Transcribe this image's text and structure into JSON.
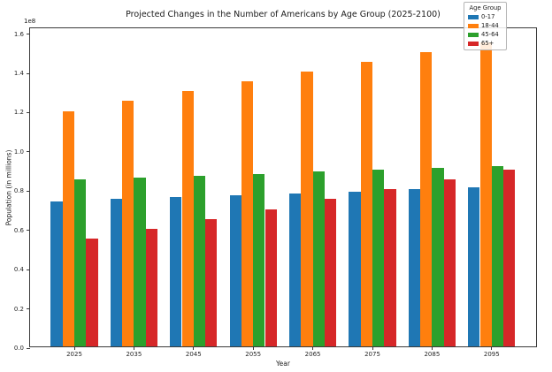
{
  "chart_data": {
    "type": "bar",
    "title": "Projected Changes in the Number of Americans by Age Group (2025-2100)",
    "xlabel": "Year",
    "ylabel": "Population (in millions)",
    "y_offset_label": "1e8",
    "categories": [
      "2025",
      "2035",
      "2045",
      "2055",
      "2065",
      "2075",
      "2085",
      "2095"
    ],
    "series": [
      {
        "name": "0-17",
        "color": "#1f77b4",
        "values": [
          0.74,
          0.75,
          0.76,
          0.77,
          0.78,
          0.79,
          0.8,
          0.81
        ]
      },
      {
        "name": "18-44",
        "color": "#ff7f0e",
        "values": [
          1.2,
          1.25,
          1.3,
          1.35,
          1.4,
          1.45,
          1.5,
          1.55
        ]
      },
      {
        "name": "45-64",
        "color": "#2ca02c",
        "values": [
          0.85,
          0.86,
          0.87,
          0.88,
          0.89,
          0.9,
          0.91,
          0.92
        ]
      },
      {
        "name": "65+",
        "color": "#d62728",
        "values": [
          0.55,
          0.6,
          0.65,
          0.7,
          0.75,
          0.8,
          0.85,
          0.9
        ]
      }
    ],
    "yticks": [
      0.0,
      0.2,
      0.4,
      0.6,
      0.8,
      1.0,
      1.2,
      1.4,
      1.6
    ],
    "ylim": [
      0,
      1.63
    ],
    "grid": false,
    "legend": {
      "title": "Age Group",
      "position": "upper right",
      "entries": [
        "0-17",
        "18-44",
        "45-64",
        "65+"
      ]
    }
  }
}
